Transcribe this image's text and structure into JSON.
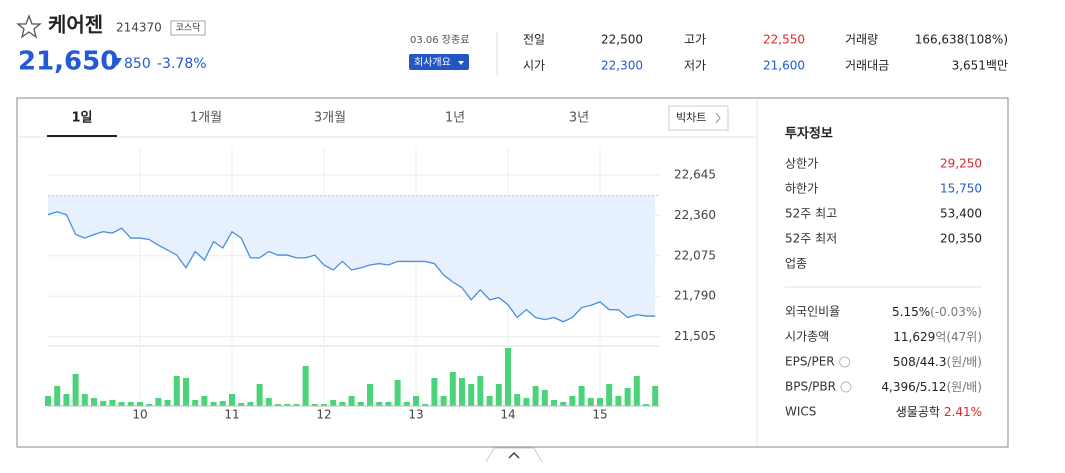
{
  "header": {
    "name": "케어젠",
    "code": "214370",
    "market": "코스닥",
    "price": "21,650",
    "change": "850",
    "rate": "-3.78%",
    "date": "03.06 장종료",
    "button": "회사개요"
  },
  "stats": [
    {
      "label": "전일",
      "value": "22,500",
      "color": "#222"
    },
    {
      "label": "시가",
      "value": "22,300",
      "color": "#2458d6"
    },
    {
      "label": "고가",
      "value": "22,550",
      "color": "#e0262b"
    },
    {
      "label": "저가",
      "value": "21,600",
      "color": "#2458d6"
    },
    {
      "label": "거래량",
      "value": "166,638(108%)",
      "color": "#222"
    },
    {
      "label": "거래대금",
      "value": "3,651백만",
      "color": "#222"
    }
  ],
  "tabs": [
    "1일",
    "1개월",
    "3개월",
    "1년",
    "3년"
  ],
  "bigchart": "빅차트",
  "chart_data": {
    "type": "line",
    "categories": [
      null,
      null,
      null,
      null,
      null,
      null,
      null,
      null,
      null,
      null,
      "10",
      null,
      null,
      null,
      null,
      null,
      null,
      null,
      null,
      null,
      "11",
      null,
      null,
      null,
      null,
      null,
      null,
      null,
      null,
      null,
      "12",
      null,
      null,
      null,
      null,
      null,
      null,
      null,
      null,
      null,
      "13",
      null,
      null,
      null,
      null,
      null,
      null,
      null,
      null,
      null,
      "14",
      null,
      null,
      null,
      null,
      null,
      null,
      null,
      null,
      null,
      "15",
      null,
      null,
      null,
      null,
      null,
      null
    ],
    "series": [
      {
        "color": "#4a8fe0",
        "values": [
          22365,
          22385,
          22365,
          22225,
          22200,
          22225,
          22245,
          22235,
          22270,
          22200,
          22200,
          22190,
          22150,
          22115,
          22080,
          21990,
          22105,
          22045,
          22175,
          22130,
          22245,
          22200,
          22060,
          22060,
          22105,
          22080,
          22080,
          22060,
          22060,
          22080,
          22010,
          21975,
          22035,
          21975,
          21990,
          22010,
          22020,
          22010,
          22035,
          22035,
          22035,
          22035,
          22020,
          21940,
          21890,
          21850,
          21765,
          21835,
          21765,
          21780,
          21730,
          21640,
          21695,
          21640,
          21625,
          21640,
          21610,
          21640,
          21710,
          21725,
          21750,
          21695,
          21695,
          21640,
          21660,
          21650,
          21650
        ]
      }
    ],
    "base": 22500,
    "ylim": [
      21460,
      22835
    ],
    "yticks": [
      {
        "value": 22645,
        "label": "22,645"
      },
      {
        "value": 22360,
        "label": "22,360"
      },
      {
        "value": 22075,
        "label": "22,075"
      },
      {
        "value": 21790,
        "label": "21,790"
      },
      {
        "value": 21505,
        "label": "21,505"
      }
    ],
    "volume": {
      "color": "#4cd37a",
      "values": [
        10,
        20,
        12,
        32,
        12,
        8,
        5,
        6,
        4,
        4,
        4,
        2,
        8,
        6,
        30,
        28,
        6,
        10,
        4,
        5,
        12,
        3,
        4,
        22,
        8,
        2,
        2,
        2,
        40,
        2,
        2,
        6,
        4,
        10,
        4,
        22,
        4,
        4,
        26,
        4,
        10,
        2,
        28,
        10,
        34,
        28,
        22,
        30,
        10,
        22,
        58,
        12,
        8,
        20,
        16,
        6,
        4,
        10,
        20,
        8,
        8,
        22,
        10,
        18,
        30,
        2,
        20
      ],
      "ylim": [
        0,
        60
      ]
    },
    "grid": true
  },
  "info": {
    "title": "투자정보",
    "rows": [
      {
        "label": "상한가",
        "value": "29,250",
        "color": "#e0262b"
      },
      {
        "label": "하한가",
        "value": "15,750",
        "color": "#2458d6"
      },
      {
        "label": "52주 최고",
        "value": "53,400",
        "color": "#222"
      },
      {
        "label": "52주 최저",
        "value": "20,350",
        "color": "#222"
      },
      {
        "label": "업종"
      }
    ],
    "rows2": [
      {
        "label": "외국인비율",
        "value": "5.15%",
        "sub": "(-0.03%)"
      },
      {
        "label": "시가총액",
        "value": "11,629",
        "sub": "억(47위)"
      },
      {
        "label": "EPS/PER",
        "value": "508/44.3",
        "sub": "(원/배)"
      },
      {
        "label": "BPS/PBR",
        "value": "4,396/5.12",
        "sub": "(원/배)"
      },
      {
        "label": "WICS",
        "value": "생물공학",
        "sub": "2.41%",
        "subcolor": "#e0262b"
      }
    ]
  }
}
